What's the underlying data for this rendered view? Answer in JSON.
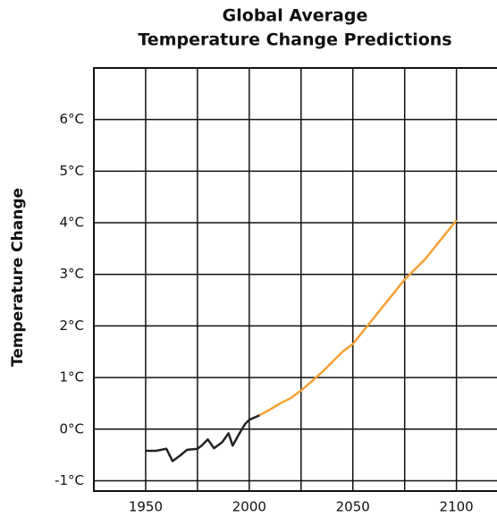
{
  "chart_data": {
    "type": "line",
    "title": [
      "Global Average",
      "Temperature Change Predictions"
    ],
    "y_label": "Temperature Change",
    "xlim": [
      1925,
      2120
    ],
    "ylim": [
      -1.2,
      7
    ],
    "xticks": [
      1950,
      2000,
      2050,
      2100
    ],
    "xgrid": [
      1925,
      1950,
      1975,
      2000,
      2025,
      2050,
      2075,
      2100
    ],
    "yticks": [
      {
        "value": -1,
        "label": "-1°C"
      },
      {
        "value": 0,
        "label": "0°C"
      },
      {
        "value": 1,
        "label": "1°C"
      },
      {
        "value": 2,
        "label": "2°C"
      },
      {
        "value": 3,
        "label": "3°C"
      },
      {
        "value": 4,
        "label": "4°C"
      },
      {
        "value": 5,
        "label": "5°C"
      },
      {
        "value": 6,
        "label": "6°C"
      }
    ],
    "grid": true,
    "series": [
      {
        "color": "#222222",
        "x": [
          1950,
          1955,
          1960,
          1963,
          1967,
          1970,
          1975,
          1977,
          1980,
          1983,
          1987,
          1990,
          1992,
          1995,
          1998,
          2000,
          2005
        ],
        "values": [
          -0.42,
          -0.42,
          -0.38,
          -0.62,
          -0.5,
          -0.4,
          -0.38,
          -0.32,
          -0.2,
          -0.37,
          -0.25,
          -0.08,
          -0.32,
          -0.1,
          0.1,
          0.18,
          0.27
        ]
      },
      {
        "color": "#f5a033",
        "x": [
          2005,
          2010,
          2015,
          2020,
          2025,
          2030,
          2035,
          2040,
          2045,
          2050,
          2055,
          2060,
          2065,
          2070,
          2075,
          2080,
          2085,
          2090,
          2095,
          2100
        ],
        "values": [
          0.27,
          0.38,
          0.5,
          0.6,
          0.75,
          0.92,
          1.1,
          1.3,
          1.5,
          1.65,
          1.9,
          2.15,
          2.4,
          2.65,
          2.9,
          3.1,
          3.3,
          3.55,
          3.8,
          4.05
        ]
      }
    ]
  }
}
